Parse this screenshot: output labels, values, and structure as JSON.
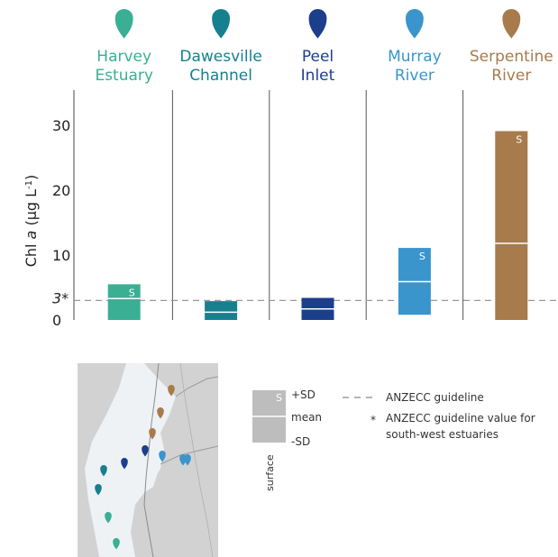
{
  "chart_data": {
    "type": "bar",
    "ylabel_parts": [
      "Chl ",
      "a",
      " (µg L",
      "-1",
      ")"
    ],
    "y_ticks": [
      {
        "value": 0,
        "label": "0"
      },
      {
        "value": 3,
        "label": "3*"
      },
      {
        "value": 10,
        "label": "10"
      },
      {
        "value": 20,
        "label": "20"
      },
      {
        "value": 30,
        "label": "30"
      }
    ],
    "ylim": [
      0,
      33
    ],
    "guideline_value": 3,
    "sites": [
      {
        "name_lines": [
          "Harvey",
          "Estuary"
        ],
        "color": "#3aaf94",
        "minus_sd": 0.0,
        "mean": 3.3,
        "plus_sd": 5.5,
        "surface_label": "S"
      },
      {
        "name_lines": [
          "Dawesville",
          "Channel"
        ],
        "color": "#16808f",
        "minus_sd": 0.0,
        "mean": 1.2,
        "plus_sd": 2.9,
        "surface_label": ""
      },
      {
        "name_lines": [
          "Peel",
          "Inlet"
        ],
        "color": "#1c3f8c",
        "minus_sd": 0.0,
        "mean": 1.7,
        "plus_sd": 3.4,
        "surface_label": ""
      },
      {
        "name_lines": [
          "Murray",
          "River"
        ],
        "color": "#3a95cc",
        "minus_sd": 0.8,
        "mean": 5.9,
        "plus_sd": 11.1,
        "surface_label": "S"
      },
      {
        "name_lines": [
          "Serpentine",
          "River"
        ],
        "color": "#a77b4c",
        "minus_sd": 0.0,
        "mean": 11.8,
        "plus_sd": 29.1,
        "surface_label": "S"
      }
    ]
  },
  "legend": {
    "box_s": "S",
    "plus_sd": "+SD",
    "mean": "mean",
    "minus_sd": "-SD",
    "surface": "surface",
    "guideline": "ANZECC guideline",
    "asterisk": "*",
    "asterisk_note_lines": [
      "ANZECC guideline value for",
      "south-west estuaries"
    ]
  },
  "map": {
    "land_color": "#d2d2d2",
    "water_color": "#eef2f5"
  }
}
